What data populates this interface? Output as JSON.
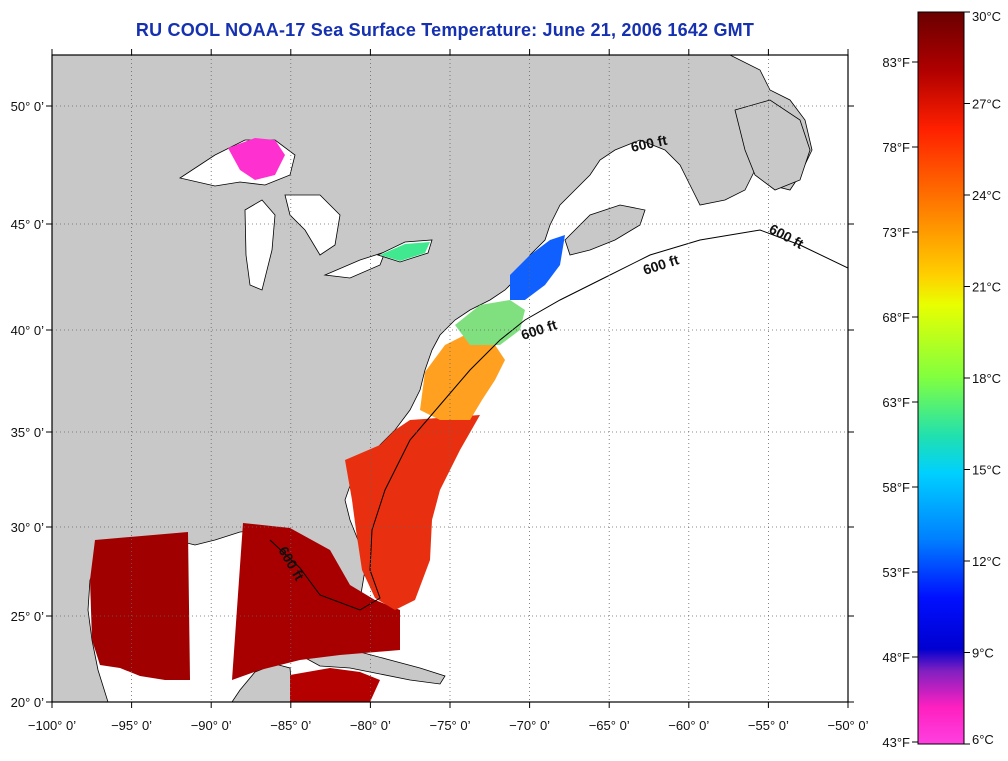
{
  "title": "RU COOL  NOAA-17  Sea Surface Temperature:  June 21, 2006 1642 GMT",
  "map": {
    "lon_labels": [
      "−100° 0’",
      "−95° 0’",
      "−90° 0’",
      "−85° 0’",
      "−80° 0’",
      "−75° 0’",
      "−70° 0’",
      "−65° 0’",
      "−60° 0’",
      "−55° 0’",
      "−50° 0’"
    ],
    "lat_labels": [
      "50° 0’",
      "45° 0’",
      "40° 0’",
      "35° 0’",
      "30° 0’",
      "25° 0’",
      "20° 0’"
    ],
    "contour_label": "600 ft",
    "land_color": "#c8c8c8",
    "ocean_color": "#ffffff"
  },
  "colorbar": {
    "celsius_labels": [
      "30°C",
      "27°C",
      "24°C",
      "21°C",
      "18°C",
      "15°C",
      "12°C",
      "9°C",
      "6°C"
    ],
    "fahrenheit_labels": [
      "83°F",
      "78°F",
      "73°F",
      "68°F",
      "63°F",
      "58°F",
      "53°F",
      "48°F",
      "43°F"
    ],
    "gradient_colors": [
      "#6a0000",
      "#b00000",
      "#ff2000",
      "#ff8000",
      "#ffd000",
      "#e8ff00",
      "#80ff40",
      "#20e0b0",
      "#00d0ff",
      "#0080ff",
      "#0010ff",
      "#0000d0",
      "#8020c0",
      "#ff20c0",
      "#ff40e0"
    ]
  }
}
